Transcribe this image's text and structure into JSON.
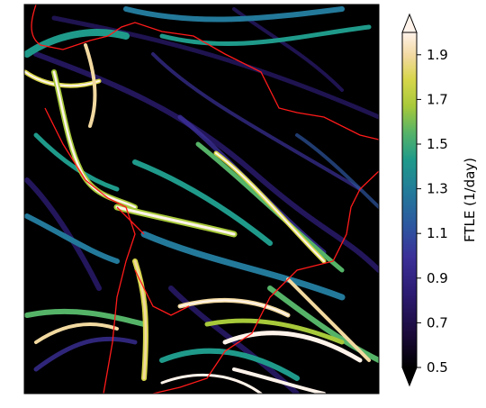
{
  "colorbar": {
    "label": "FTLE (1/day)",
    "ticks": [
      "0.5",
      "0.7",
      "0.9",
      "1.1",
      "1.3",
      "1.5",
      "1.7",
      "1.9"
    ],
    "range": [
      0.5,
      2.0
    ],
    "extend": "both",
    "colors": [
      "#000000",
      "#1a0a3a",
      "#2c1b72",
      "#3b3098",
      "#2d56a0",
      "#23799a",
      "#1f9a8a",
      "#55b368",
      "#a7c93a",
      "#d7d64a",
      "#f2d9a0",
      "#fff3ea"
    ]
  },
  "map": {
    "background": "#000000",
    "border_color": "#ff1a1a"
  }
}
